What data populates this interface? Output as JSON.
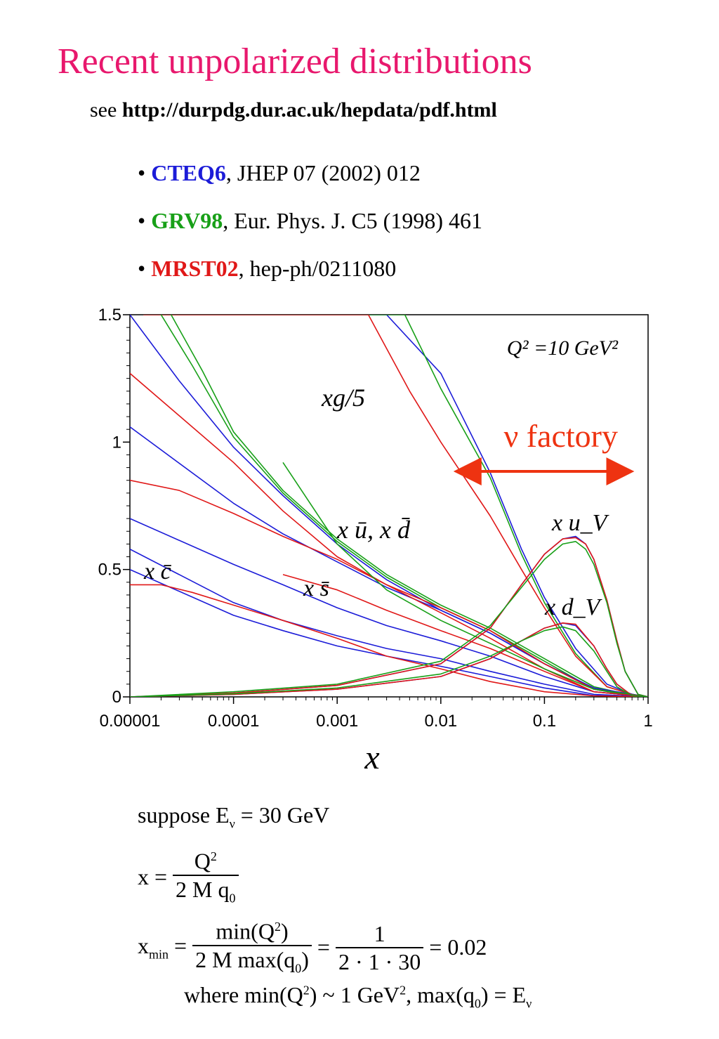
{
  "page": {
    "title": "Recent unpolarized distributions",
    "see_prefix": "see",
    "see_url": "http://durpdg.dur.ac.uk/hepdata/pdf.html"
  },
  "references": [
    {
      "bullet": "•",
      "name": "CTEQ6",
      "color": "#1c1cd8",
      "citation": ", JHEP 07 (2002) 012"
    },
    {
      "bullet": "•",
      "name": "GRV98",
      "color": "#18a018",
      "citation": ", Eur. Phys. J. C5 (1998) 461"
    },
    {
      "bullet": "•",
      "name": "MRST02",
      "color": "#e01818",
      "citation": ", hep-ph/0211080"
    }
  ],
  "chart_data": {
    "type": "line",
    "xscale": "log",
    "xlim": [
      1e-05,
      1
    ],
    "ylim": [
      0,
      1.5
    ],
    "x_ticks": [
      "0.00001",
      "0.0001",
      "0.001",
      "0.01",
      "0.1",
      "1"
    ],
    "y_ticks": [
      "0",
      "0.5",
      "1",
      "1.5"
    ],
    "xlabel": "x",
    "annotation_q2": "Q² =10 GeV²",
    "annotation_factory": "ν factory",
    "factory_range": [
      0.015,
      0.65
    ],
    "colors": {
      "CTEQ6": "#1c1cd8",
      "GRV98": "#18a018",
      "MRST02": "#e01818",
      "factory": "#ee3311"
    },
    "curve_labels": [
      {
        "text": "xg/5"
      },
      {
        "text": "x ū, x d̄"
      },
      {
        "text": "x s̄"
      },
      {
        "text": "x c̄"
      },
      {
        "text": "x u_V"
      },
      {
        "text": "x d_V"
      }
    ],
    "series": [
      {
        "group": "CTEQ6",
        "x": [
          1.35e-05,
          5e-05,
          0.0002,
          0.001,
          0.003,
          0.01,
          0.03,
          0.06,
          0.1,
          0.2,
          0.4,
          0.7,
          1
        ],
        "y": [
          1.5,
          1.5,
          1.5,
          1.5,
          1.5,
          1.27,
          0.88,
          0.58,
          0.39,
          0.19,
          0.05,
          0.01,
          0
        ]
      },
      {
        "group": "GRV98",
        "x": [
          1.35e-05,
          5e-05,
          0.0002,
          0.001,
          0.0045,
          0.01,
          0.03,
          0.06,
          0.1,
          0.2,
          0.4,
          0.7,
          1
        ],
        "y": [
          1.5,
          1.5,
          1.5,
          1.5,
          1.5,
          1.21,
          0.86,
          0.56,
          0.37,
          0.17,
          0.04,
          0.01,
          0
        ]
      },
      {
        "group": "MRST02",
        "x": [
          1.35e-05,
          5e-05,
          0.0002,
          0.001,
          0.002,
          0.005,
          0.01,
          0.03,
          0.06,
          0.1,
          0.2,
          0.4,
          0.7,
          1
        ],
        "y": [
          1.5,
          1.5,
          1.5,
          1.5,
          1.5,
          1.2,
          1.0,
          0.71,
          0.5,
          0.35,
          0.16,
          0.04,
          0.01,
          0
        ]
      },
      {
        "group": "CTEQ6",
        "x": [
          1e-05,
          3e-05,
          0.0001,
          0.0003,
          0.001,
          0.003,
          0.01,
          0.03,
          0.1,
          0.3,
          0.7,
          1
        ],
        "y": [
          1.5,
          1.24,
          0.98,
          0.79,
          0.6,
          0.46,
          0.34,
          0.25,
          0.13,
          0.03,
          0.005,
          0
        ]
      },
      {
        "group": "GRV98",
        "x": [
          2e-05,
          4e-05,
          0.0001,
          0.0003,
          0.001,
          0.003,
          0.01,
          0.03,
          0.1,
          0.3,
          0.7,
          1
        ],
        "y": [
          1.5,
          1.3,
          1.02,
          0.8,
          0.61,
          0.47,
          0.35,
          0.26,
          0.14,
          0.03,
          0.005,
          0
        ]
      },
      {
        "group": "GRV98",
        "x": [
          2.5e-05,
          5e-05,
          0.0001,
          0.0003,
          0.001,
          0.003,
          0.01,
          0.03,
          0.1,
          0.3,
          0.7,
          1
        ],
        "y": [
          1.5,
          1.28,
          1.04,
          0.81,
          0.62,
          0.48,
          0.36,
          0.27,
          0.15,
          0.04,
          0.006,
          0
        ]
      },
      {
        "group": "CTEQ6",
        "x": [
          1e-05,
          0.0001,
          0.0003,
          0.001,
          0.003,
          0.01,
          0.03,
          0.1,
          0.3,
          1
        ],
        "y": [
          1.06,
          0.76,
          0.64,
          0.53,
          0.43,
          0.34,
          0.25,
          0.13,
          0.035,
          0
        ]
      },
      {
        "group": "MRST02",
        "x": [
          1e-05,
          0.0001,
          0.0003,
          0.001,
          0.003,
          0.01,
          0.03,
          0.1,
          0.3,
          1
        ],
        "y": [
          1.27,
          0.92,
          0.73,
          0.55,
          0.44,
          0.35,
          0.26,
          0.13,
          0.03,
          0
        ]
      },
      {
        "group": "MRST02",
        "x": [
          1e-05,
          3e-05,
          0.0001,
          0.0003,
          0.001,
          0.003,
          0.01,
          0.03,
          0.1,
          0.3,
          1
        ],
        "y": [
          0.85,
          0.81,
          0.72,
          0.63,
          0.54,
          0.44,
          0.33,
          0.23,
          0.11,
          0.02,
          0
        ]
      },
      {
        "group": "GRV98",
        "x": [
          0.0003,
          0.001,
          0.003,
          0.01,
          0.03,
          0.1,
          0.3,
          1
        ],
        "y": [
          0.92,
          0.6,
          0.42,
          0.3,
          0.21,
          0.11,
          0.03,
          0
        ]
      },
      {
        "group": "CTEQ6",
        "x": [
          1e-05,
          0.0001,
          0.0003,
          0.001,
          0.003,
          0.01,
          0.03,
          0.1,
          0.3,
          1
        ],
        "y": [
          0.7,
          0.52,
          0.44,
          0.35,
          0.28,
          0.22,
          0.16,
          0.08,
          0.02,
          0
        ]
      },
      {
        "group": "MRST02",
        "x": [
          0.0003,
          0.001,
          0.003,
          0.01,
          0.03,
          0.1,
          0.3,
          1
        ],
        "y": [
          0.48,
          0.42,
          0.34,
          0.26,
          0.19,
          0.1,
          0.02,
          0
        ]
      },
      {
        "group": "CTEQ6",
        "x": [
          1e-05,
          0.0001,
          0.0003,
          0.001,
          0.003,
          0.01,
          0.03,
          0.1,
          0.3,
          1
        ],
        "y": [
          0.58,
          0.37,
          0.3,
          0.24,
          0.19,
          0.15,
          0.1,
          0.05,
          0.01,
          0
        ]
      },
      {
        "group": "CTEQ6",
        "x": [
          1e-05,
          0.0001,
          0.0003,
          0.001,
          0.003,
          0.01,
          0.03,
          0.1,
          0.3,
          1
        ],
        "y": [
          0.5,
          0.32,
          0.26,
          0.2,
          0.16,
          0.12,
          0.08,
          0.035,
          0.005,
          0
        ]
      },
      {
        "group": "MRST02",
        "x": [
          1e-05,
          2e-05,
          4e-05,
          0.0001,
          0.0003,
          0.001,
          0.003,
          0.01,
          0.03,
          0.1,
          0.3,
          1
        ],
        "y": [
          0.44,
          0.44,
          0.41,
          0.36,
          0.3,
          0.23,
          0.16,
          0.11,
          0.06,
          0.02,
          0.004,
          0
        ]
      },
      {
        "group": "CTEQ6",
        "x": [
          1e-05,
          0.0001,
          0.001,
          0.01,
          0.03,
          0.06,
          0.1,
          0.15,
          0.2,
          0.25,
          0.3,
          0.4,
          0.5,
          0.6,
          0.8,
          1
        ],
        "y": [
          0.0,
          0.015,
          0.045,
          0.13,
          0.27,
          0.44,
          0.56,
          0.62,
          0.63,
          0.6,
          0.54,
          0.38,
          0.22,
          0.1,
          0.01,
          0
        ]
      },
      {
        "group": "MRST02",
        "x": [
          1e-05,
          0.0001,
          0.001,
          0.01,
          0.03,
          0.06,
          0.1,
          0.15,
          0.2,
          0.25,
          0.3,
          0.4,
          0.5,
          0.6,
          0.8,
          1
        ],
        "y": [
          0.0,
          0.015,
          0.045,
          0.13,
          0.27,
          0.44,
          0.56,
          0.62,
          0.625,
          0.6,
          0.54,
          0.38,
          0.22,
          0.1,
          0.01,
          0
        ]
      },
      {
        "group": "GRV98",
        "x": [
          1e-05,
          0.0001,
          0.001,
          0.01,
          0.03,
          0.06,
          0.1,
          0.15,
          0.2,
          0.25,
          0.3,
          0.4,
          0.5,
          0.6,
          0.8,
          1
        ],
        "y": [
          0.0,
          0.02,
          0.05,
          0.14,
          0.28,
          0.43,
          0.54,
          0.6,
          0.61,
          0.58,
          0.52,
          0.37,
          0.21,
          0.1,
          0.01,
          0
        ]
      },
      {
        "group": "CTEQ6",
        "x": [
          1e-05,
          0.0001,
          0.001,
          0.01,
          0.03,
          0.06,
          0.1,
          0.15,
          0.2,
          0.3,
          0.4,
          0.5,
          0.7,
          1
        ],
        "y": [
          0.0,
          0.01,
          0.03,
          0.08,
          0.15,
          0.22,
          0.27,
          0.29,
          0.28,
          0.2,
          0.11,
          0.05,
          0.005,
          0
        ]
      },
      {
        "group": "MRST02",
        "x": [
          1e-05,
          0.0001,
          0.001,
          0.01,
          0.03,
          0.06,
          0.1,
          0.15,
          0.2,
          0.3,
          0.4,
          0.5,
          0.7,
          1
        ],
        "y": [
          0.0,
          0.01,
          0.03,
          0.08,
          0.15,
          0.22,
          0.27,
          0.29,
          0.285,
          0.2,
          0.11,
          0.05,
          0.005,
          0
        ]
      },
      {
        "group": "GRV98",
        "x": [
          1e-05,
          0.0001,
          0.001,
          0.01,
          0.03,
          0.06,
          0.1,
          0.15,
          0.2,
          0.3,
          0.4,
          0.5,
          0.7,
          1
        ],
        "y": [
          0.0,
          0.012,
          0.035,
          0.09,
          0.16,
          0.22,
          0.26,
          0.275,
          0.26,
          0.18,
          0.1,
          0.04,
          0.004,
          0
        ]
      }
    ]
  },
  "equations": {
    "suppose": "suppose  E",
    "suppose_sub": "ν",
    "suppose_rest": " = 30 GeV",
    "x_lhs": "x =",
    "x_num": "Q",
    "x_num_sup": "2",
    "x_den": "2 M q",
    "x_den_sub": "0",
    "xmin_lhs": "x",
    "xmin_sub": "min",
    "xmin_eq": " =",
    "xmin_num1": "min(Q",
    "xmin_num1_sup": "2",
    "xmin_num1_close": ")",
    "xmin_den1": "2 M max(q",
    "xmin_den1_sub": "0",
    "xmin_den1_close": ")",
    "xmin_eq2": "=",
    "xmin_num2": "1",
    "xmin_den2": "2 · 1 · 30",
    "xmin_result": "= 0.02",
    "where_a": "where   min(Q",
    "where_sup": "2",
    "where_b": ") ~ 1 GeV",
    "where_sup2": "2",
    "where_c": ",  max(q",
    "where_sub": "0",
    "where_d": ") = E",
    "where_sub2": "ν"
  }
}
